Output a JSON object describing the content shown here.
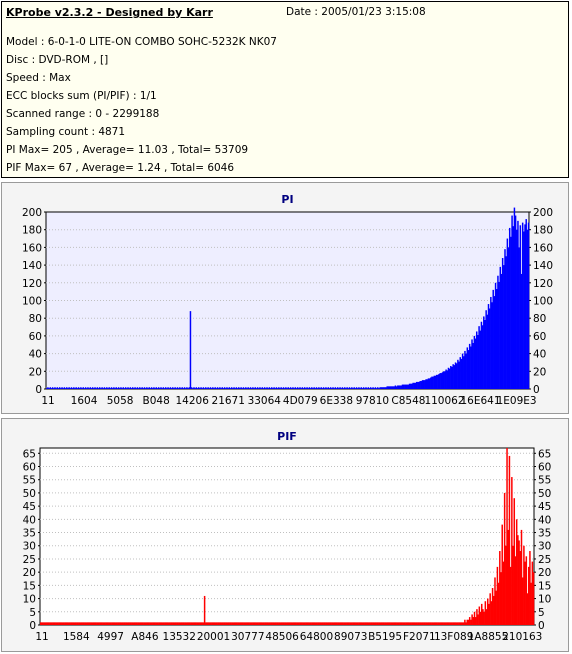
{
  "info": {
    "header": "KProbe v2.3.2 - Designed by Karr",
    "date": "Date : 2005/01/23 3:15:08",
    "lines": [
      "Model : 6-0-1-0 LITE-ON COMBO SOHC-5232K NK07",
      "Disc : DVD-ROM ,  []",
      "Speed : Max",
      "ECC blocks sum (PI/PIF) : 1/1",
      "Scanned range : 0 - 2299188",
      "Sampling count : 4871",
      "PI Max= 205 , Average= 11.03 , Total= 53709",
      "PIF Max= 67 , Average= 1.24 , Total= 6046"
    ]
  },
  "colors": {
    "pi_fill": "#0000ff",
    "pif_fill": "#ff0000",
    "plot_bg": "#eeeeff",
    "pif_plot_bg": "#ffffff"
  },
  "chart_data": [
    {
      "type": "bar",
      "title": "PI",
      "ylim": [
        0,
        200
      ],
      "yticks": [
        0,
        20,
        40,
        60,
        80,
        100,
        120,
        140,
        160,
        180,
        200
      ],
      "xtick_labels": [
        "11",
        "1604",
        "5058",
        "B048",
        "14206",
        "21671",
        "33064",
        "4D079",
        "6E338",
        "97810",
        "C8548",
        "110062",
        "16E641",
        "1E09E3"
      ],
      "grid": true,
      "series": [
        {
          "values": [
            1,
            2,
            1,
            2,
            1,
            2,
            1,
            2,
            1,
            2,
            1,
            2,
            1,
            2,
            1,
            2,
            1,
            2,
            1,
            2,
            1,
            2,
            1,
            2,
            1,
            2,
            1,
            2,
            1,
            2,
            1,
            2,
            1,
            2,
            1,
            2,
            1,
            2,
            1,
            2,
            1,
            2,
            1,
            2,
            1,
            2,
            1,
            2,
            1,
            2,
            1,
            2,
            1,
            2,
            1,
            2,
            1,
            2,
            1,
            2,
            1,
            2,
            1,
            2,
            1,
            2,
            1,
            2,
            1,
            2,
            1,
            2,
            1,
            2,
            1,
            2,
            1,
            2,
            1,
            2,
            1,
            2,
            1,
            2,
            1,
            2,
            1,
            2,
            1,
            2,
            1,
            2,
            1,
            2,
            1,
            2,
            1,
            2,
            1,
            2,
            1,
            2,
            1,
            2,
            1,
            2,
            1,
            2,
            1,
            2,
            1,
            2,
            1,
            2,
            1,
            2,
            1,
            2,
            1,
            2,
            1,
            2,
            88,
            2,
            1,
            2,
            1,
            2,
            1,
            2,
            1,
            2,
            1,
            2,
            1,
            2,
            1,
            2,
            1,
            2,
            1,
            2,
            1,
            2,
            1,
            2,
            1,
            2,
            1,
            2,
            1,
            2,
            1,
            2,
            1,
            2,
            1,
            2,
            1,
            2,
            1,
            2,
            1,
            2,
            1,
            2,
            1,
            2,
            1,
            2,
            1,
            2,
            1,
            2,
            1,
            2,
            1,
            2,
            1,
            2,
            1,
            2,
            1,
            2,
            1,
            2,
            1,
            2,
            1,
            2,
            1,
            2,
            1,
            2,
            1,
            2,
            1,
            2,
            1,
            2,
            1,
            2,
            1,
            2,
            1,
            2,
            1,
            2,
            1,
            2,
            1,
            2,
            1,
            2,
            1,
            2,
            1,
            2,
            1,
            2,
            1,
            2,
            1,
            2,
            1,
            2,
            1,
            2,
            1,
            2,
            1,
            2,
            1,
            2,
            1,
            2,
            1,
            2,
            1,
            2,
            1,
            2,
            1,
            2,
            1,
            2,
            1,
            2,
            1,
            2,
            1,
            2,
            1,
            2,
            1,
            2,
            1,
            2,
            1,
            2,
            1,
            2,
            1,
            2,
            1,
            2,
            1,
            2,
            1,
            2,
            1,
            2,
            1,
            2,
            1,
            2,
            1,
            2,
            1,
            2,
            1,
            2,
            1,
            2,
            2,
            2,
            2,
            2,
            2,
            3,
            3,
            3,
            3,
            3,
            3,
            3,
            4,
            3,
            4,
            4,
            4,
            4,
            5,
            5,
            5,
            5,
            5,
            5,
            6,
            6,
            6,
            7,
            7,
            7,
            8,
            8,
            8,
            9,
            9,
            10,
            10,
            10,
            11,
            11,
            12,
            12,
            13,
            14,
            14,
            15,
            15,
            16,
            16,
            17,
            18,
            18,
            19,
            20,
            20,
            22,
            21,
            24,
            23,
            26,
            25,
            28,
            27,
            30,
            29,
            33,
            31,
            36,
            34,
            40,
            37,
            43,
            40,
            47,
            44,
            51,
            48,
            56,
            52,
            60,
            57,
            65,
            61,
            71,
            66,
            76,
            72,
            82,
            78,
            89,
            84,
            96,
            91,
            104,
            98,
            112,
            105,
            120,
            113,
            128,
            121,
            138,
            130,
            148,
            140,
            158,
            150,
            170,
            160,
            182,
            172,
            196,
            184,
            205,
            196,
            180,
            190,
            160,
            185,
            130,
            188,
            178,
            186,
            192,
            180,
            188
          ]
        }
      ]
    },
    {
      "type": "bar",
      "title": "PIF",
      "ylim": [
        0,
        67
      ],
      "yticks": [
        0,
        5,
        10,
        15,
        20,
        25,
        30,
        35,
        40,
        45,
        50,
        55,
        60,
        65
      ],
      "xtick_labels": [
        "11",
        "1584",
        "4997",
        "A846",
        "13532",
        "20001",
        "30777",
        "48506",
        "64800",
        "89073",
        "B5195",
        "F2071",
        "13F089",
        "1A8855",
        "210163"
      ],
      "grid": true,
      "series": [
        {
          "values": [
            1,
            1,
            1,
            1,
            1,
            1,
            1,
            1,
            1,
            1,
            1,
            1,
            1,
            1,
            1,
            1,
            1,
            1,
            1,
            1,
            1,
            1,
            1,
            1,
            1,
            1,
            1,
            1,
            1,
            1,
            1,
            1,
            1,
            1,
            1,
            1,
            1,
            1,
            1,
            1,
            1,
            1,
            1,
            1,
            1,
            1,
            1,
            1,
            1,
            1,
            1,
            1,
            1,
            1,
            1,
            1,
            1,
            1,
            1,
            1,
            1,
            1,
            1,
            1,
            1,
            1,
            1,
            1,
            1,
            1,
            1,
            1,
            1,
            1,
            1,
            1,
            1,
            1,
            1,
            1,
            1,
            1,
            1,
            1,
            1,
            1,
            1,
            1,
            1,
            1,
            1,
            1,
            1,
            1,
            1,
            1,
            1,
            1,
            1,
            1,
            1,
            1,
            1,
            1,
            1,
            1,
            1,
            1,
            1,
            1,
            1,
            1,
            1,
            1,
            1,
            1,
            1,
            1,
            1,
            1,
            1,
            1,
            1,
            1,
            1,
            1,
            1,
            1,
            1,
            1,
            1,
            1,
            1,
            1,
            1,
            1,
            11,
            1,
            1,
            1,
            1,
            1,
            1,
            1,
            1,
            1,
            1,
            1,
            1,
            1,
            1,
            1,
            1,
            1,
            1,
            1,
            1,
            1,
            1,
            1,
            1,
            1,
            1,
            1,
            1,
            1,
            1,
            1,
            1,
            1,
            1,
            1,
            1,
            1,
            1,
            1,
            1,
            1,
            1,
            1,
            1,
            1,
            1,
            1,
            1,
            1,
            1,
            1,
            1,
            1,
            1,
            1,
            1,
            1,
            1,
            1,
            1,
            1,
            1,
            1,
            1,
            1,
            1,
            1,
            1,
            1,
            1,
            1,
            1,
            1,
            1,
            1,
            1,
            1,
            1,
            1,
            1,
            1,
            1,
            1,
            1,
            1,
            1,
            1,
            1,
            1,
            1,
            1,
            1,
            1,
            1,
            1,
            1,
            1,
            1,
            1,
            1,
            1,
            1,
            1,
            1,
            1,
            1,
            1,
            1,
            1,
            1,
            1,
            1,
            1,
            1,
            1,
            1,
            1,
            1,
            1,
            1,
            1,
            1,
            1,
            1,
            1,
            1,
            1,
            1,
            1,
            1,
            1,
            1,
            1,
            1,
            1,
            1,
            1,
            1,
            1,
            1,
            1,
            1,
            1,
            1,
            1,
            1,
            1,
            1,
            1,
            1,
            1,
            1,
            1,
            1,
            1,
            1,
            1,
            1,
            1,
            1,
            1,
            1,
            1,
            1,
            1,
            1,
            1,
            1,
            1,
            1,
            1,
            1,
            1,
            1,
            1,
            1,
            1,
            1,
            1,
            1,
            1,
            1,
            1,
            1,
            1,
            1,
            1,
            1,
            1,
            1,
            1,
            1,
            1,
            1,
            1,
            1,
            1,
            1,
            1,
            1,
            1,
            1,
            1,
            1,
            1,
            1,
            1,
            1,
            1,
            1,
            1,
            1,
            1,
            1,
            1,
            2,
            1,
            2,
            2,
            3,
            2,
            4,
            3,
            5,
            3,
            6,
            4,
            7,
            5,
            8,
            6,
            5,
            9,
            6,
            10,
            8,
            12,
            9,
            14,
            11,
            18,
            13,
            22,
            16,
            28,
            20,
            38,
            24,
            50,
            30,
            67,
            36,
            64,
            22,
            56,
            30,
            48,
            26,
            40,
            34,
            32,
            28,
            36,
            18,
            30,
            24,
            26,
            12,
            22,
            28,
            16,
            24,
            20
          ]
        }
      ]
    }
  ]
}
